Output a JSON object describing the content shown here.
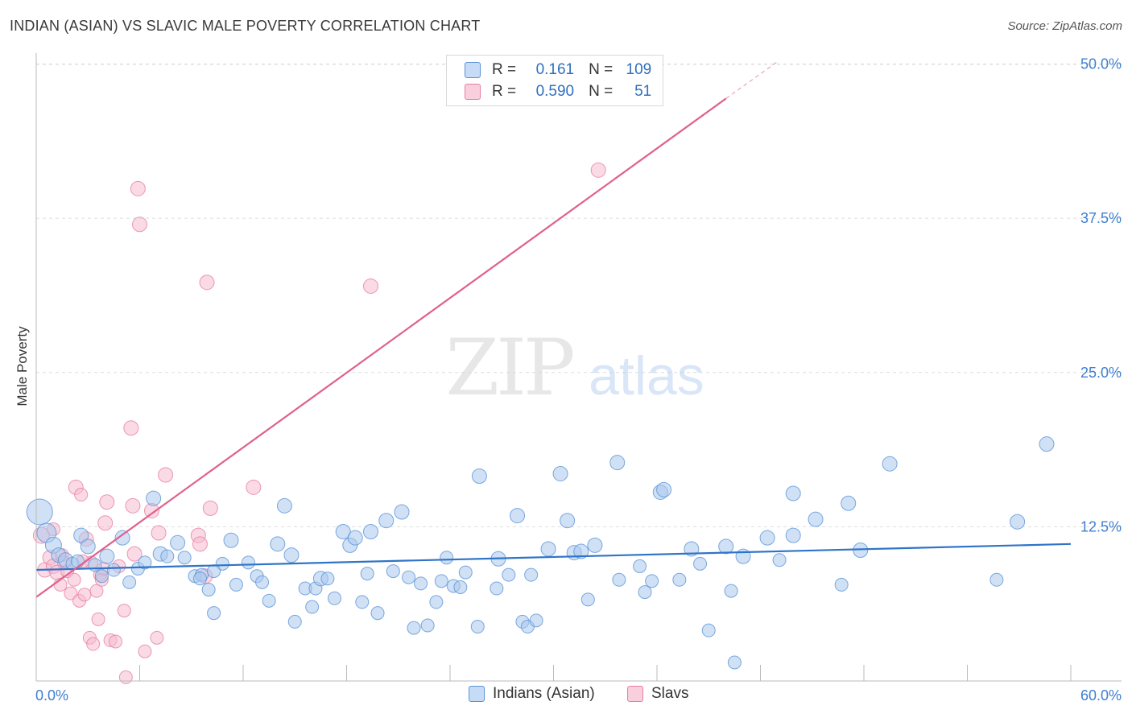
{
  "header": {
    "title": "INDIAN (ASIAN) VS SLAVIC MALE POVERTY CORRELATION CHART",
    "source": "Source: ZipAtlas.com"
  },
  "watermark": {
    "zip": "ZIP",
    "atlas": "atlas"
  },
  "legend": {
    "rows": [
      {
        "r_label": "R =",
        "r_value": "0.161",
        "n_label": "N =",
        "n_value": "109"
      },
      {
        "r_label": "R =",
        "r_value": "0.590",
        "n_label": "N =",
        "n_value": "51"
      }
    ]
  },
  "bottom_legend": {
    "indians": "Indians (Asian)",
    "slavs": "Slavs"
  },
  "colors": {
    "indians_fill": "#a9c8ef",
    "indians_stroke": "#5b93d6",
    "indians_line": "#2f74c8",
    "slavs_fill": "#f5bcd0",
    "slavs_stroke": "#e87fa3",
    "slavs_line": "#e0608e",
    "grid": "#dddddd",
    "axis_text": "#3f7fd0"
  },
  "chart_data": {
    "type": "scatter",
    "title": "INDIAN (ASIAN) VS SLAVIC MALE POVERTY CORRELATION CHART",
    "xlabel": "",
    "ylabel": "Male Poverty",
    "xlim": [
      0,
      60
    ],
    "ylim": [
      0,
      50
    ],
    "x_tick_labels": [
      "0.0%",
      "60.0%"
    ],
    "y_ticks": [
      12.5,
      25.0,
      37.5,
      50.0
    ],
    "y_tick_labels": [
      "12.5%",
      "25.0%",
      "37.5%",
      "50.0%"
    ],
    "grid": true,
    "legend_position": "top-center",
    "series": [
      {
        "name": "Indians (Asian)",
        "r": 0.161,
        "n": 109,
        "trend": {
          "x0": 0,
          "y0": 9.0,
          "x1": 60,
          "y1": 11.1
        },
        "points": [
          [
            0.2,
            13.7,
            16
          ],
          [
            0.6,
            12.0,
            12
          ],
          [
            1.0,
            11.0,
            10
          ],
          [
            1.3,
            10.2,
            9
          ],
          [
            1.7,
            9.8,
            9
          ],
          [
            2.1,
            9.5,
            8
          ],
          [
            2.6,
            11.8,
            9
          ],
          [
            3.0,
            10.9,
            9
          ],
          [
            3.4,
            9.4,
            8
          ],
          [
            3.8,
            8.5,
            8
          ],
          [
            4.1,
            10.1,
            9
          ],
          [
            4.5,
            9.0,
            8
          ],
          [
            5.0,
            11.6,
            9
          ],
          [
            5.4,
            8.0,
            8
          ],
          [
            5.9,
            9.1,
            8
          ],
          [
            6.3,
            9.6,
            8
          ],
          [
            6.8,
            14.8,
            9
          ],
          [
            7.2,
            10.3,
            9
          ],
          [
            7.6,
            10.1,
            8
          ],
          [
            8.2,
            11.2,
            9
          ],
          [
            8.6,
            10.0,
            8
          ],
          [
            9.2,
            8.5,
            8
          ],
          [
            9.6,
            8.6,
            8
          ],
          [
            10.0,
            7.4,
            8
          ],
          [
            10.3,
            5.5,
            8
          ],
          [
            10.8,
            9.5,
            8
          ],
          [
            11.3,
            11.4,
            9
          ],
          [
            11.6,
            7.8,
            8
          ],
          [
            12.3,
            9.6,
            8
          ],
          [
            12.8,
            8.5,
            8
          ],
          [
            13.1,
            8.0,
            8
          ],
          [
            13.5,
            6.5,
            8
          ],
          [
            14.0,
            11.1,
            9
          ],
          [
            14.4,
            14.2,
            9
          ],
          [
            14.8,
            10.2,
            9
          ],
          [
            15.0,
            4.8,
            8
          ],
          [
            15.6,
            7.5,
            8
          ],
          [
            16.0,
            6.0,
            8
          ],
          [
            16.2,
            7.5,
            8
          ],
          [
            16.5,
            8.3,
            9
          ],
          [
            16.9,
            8.3,
            8
          ],
          [
            17.3,
            6.7,
            8
          ],
          [
            17.8,
            12.1,
            9
          ],
          [
            18.2,
            11.0,
            9
          ],
          [
            18.5,
            11.6,
            9
          ],
          [
            18.9,
            6.4,
            8
          ],
          [
            19.2,
            8.7,
            8
          ],
          [
            19.4,
            12.1,
            9
          ],
          [
            19.8,
            5.5,
            8
          ],
          [
            20.3,
            13.0,
            9
          ],
          [
            20.7,
            8.9,
            8
          ],
          [
            21.2,
            13.7,
            9
          ],
          [
            21.6,
            8.4,
            8
          ],
          [
            21.9,
            4.3,
            8
          ],
          [
            22.3,
            7.9,
            8
          ],
          [
            22.7,
            4.5,
            8
          ],
          [
            23.2,
            6.4,
            8
          ],
          [
            23.5,
            8.1,
            8
          ],
          [
            23.8,
            10.0,
            8
          ],
          [
            24.2,
            7.7,
            8
          ],
          [
            24.6,
            7.6,
            8
          ],
          [
            24.9,
            8.8,
            8
          ],
          [
            25.6,
            4.4,
            8
          ],
          [
            25.7,
            16.6,
            9
          ],
          [
            26.7,
            7.5,
            8
          ],
          [
            26.8,
            9.9,
            9
          ],
          [
            27.4,
            8.6,
            8
          ],
          [
            27.9,
            13.4,
            9
          ],
          [
            28.2,
            4.8,
            8
          ],
          [
            28.5,
            4.4,
            8
          ],
          [
            28.7,
            8.6,
            8
          ],
          [
            29.0,
            4.9,
            8
          ],
          [
            29.7,
            10.7,
            9
          ],
          [
            30.4,
            16.8,
            9
          ],
          [
            30.8,
            13.0,
            9
          ],
          [
            31.2,
            10.4,
            9
          ],
          [
            31.6,
            10.5,
            9
          ],
          [
            32.0,
            6.6,
            8
          ],
          [
            32.4,
            11.0,
            9
          ],
          [
            33.7,
            17.7,
            9
          ],
          [
            33.8,
            8.2,
            8
          ],
          [
            35.0,
            9.3,
            8
          ],
          [
            35.3,
            7.2,
            8
          ],
          [
            35.7,
            8.1,
            8
          ],
          [
            36.2,
            15.3,
            9
          ],
          [
            36.4,
            15.5,
            9
          ],
          [
            37.3,
            8.2,
            8
          ],
          [
            38.0,
            10.7,
            9
          ],
          [
            38.5,
            9.5,
            8
          ],
          [
            39.0,
            4.1,
            8
          ],
          [
            40.0,
            10.9,
            9
          ],
          [
            40.3,
            7.3,
            8
          ],
          [
            40.5,
            1.5,
            8
          ],
          [
            41.0,
            10.1,
            9
          ],
          [
            42.4,
            11.6,
            9
          ],
          [
            43.1,
            9.8,
            8
          ],
          [
            43.9,
            11.8,
            9
          ],
          [
            43.9,
            15.2,
            9
          ],
          [
            45.2,
            13.1,
            9
          ],
          [
            46.7,
            7.8,
            8
          ],
          [
            47.1,
            14.4,
            9
          ],
          [
            47.8,
            10.6,
            9
          ],
          [
            49.5,
            17.6,
            9
          ],
          [
            58.6,
            19.2,
            9
          ],
          [
            56.9,
            12.9,
            9
          ],
          [
            55.7,
            8.2,
            8
          ],
          [
            10.3,
            8.9,
            8
          ],
          [
            9.5,
            8.3,
            8
          ],
          [
            2.4,
            9.7,
            8
          ]
        ]
      },
      {
        "name": "Slavs",
        "r": 0.59,
        "n": 51,
        "trend": {
          "x0": 0,
          "y0": 6.8,
          "x1": 40,
          "y1": 47.2,
          "dash_x1": 43,
          "dash_y1": 50.2
        },
        "points": [
          [
            0.3,
            11.8,
            10
          ],
          [
            0.5,
            9.0,
            9
          ],
          [
            0.8,
            10.0,
            9
          ],
          [
            1.0,
            9.3,
            9
          ],
          [
            1.2,
            8.8,
            9
          ],
          [
            1.4,
            7.8,
            8
          ],
          [
            1.5,
            10.2,
            8
          ],
          [
            1.6,
            9.6,
            8
          ],
          [
            1.8,
            8.9,
            8
          ],
          [
            2.0,
            7.1,
            8
          ],
          [
            2.2,
            8.2,
            8
          ],
          [
            2.3,
            15.7,
            9
          ],
          [
            2.5,
            6.5,
            8
          ],
          [
            2.6,
            15.1,
            8
          ],
          [
            2.8,
            7.0,
            8
          ],
          [
            2.9,
            11.5,
            9
          ],
          [
            3.1,
            3.5,
            8
          ],
          [
            3.2,
            9.6,
            8
          ],
          [
            3.3,
            3.0,
            8
          ],
          [
            3.5,
            7.3,
            8
          ],
          [
            3.6,
            5.0,
            8
          ],
          [
            3.7,
            8.6,
            8
          ],
          [
            3.8,
            8.2,
            8
          ],
          [
            4.0,
            12.8,
            9
          ],
          [
            4.1,
            14.5,
            9
          ],
          [
            4.3,
            3.3,
            8
          ],
          [
            4.6,
            3.2,
            8
          ],
          [
            4.8,
            9.3,
            8
          ],
          [
            5.1,
            5.7,
            8
          ],
          [
            5.2,
            0.3,
            8
          ],
          [
            5.5,
            20.5,
            9
          ],
          [
            5.6,
            14.2,
            9
          ],
          [
            5.7,
            10.3,
            9
          ],
          [
            5.9,
            39.9,
            9
          ],
          [
            6.0,
            37.0,
            9
          ],
          [
            6.3,
            2.4,
            8
          ],
          [
            6.7,
            13.8,
            9
          ],
          [
            7.0,
            3.5,
            8
          ],
          [
            7.1,
            12.0,
            9
          ],
          [
            7.5,
            16.7,
            9
          ],
          [
            9.4,
            11.8,
            9
          ],
          [
            9.5,
            11.1,
            9
          ],
          [
            9.8,
            8.5,
            9
          ],
          [
            9.9,
            32.3,
            9
          ],
          [
            10.1,
            14.0,
            9
          ],
          [
            12.6,
            15.7,
            9
          ],
          [
            19.4,
            32.0,
            9
          ],
          [
            32.6,
            41.4,
            9
          ],
          [
            1.0,
            12.3,
            8
          ],
          [
            2.7,
            9.7,
            8
          ],
          [
            3.9,
            9.1,
            8
          ]
        ]
      }
    ]
  }
}
